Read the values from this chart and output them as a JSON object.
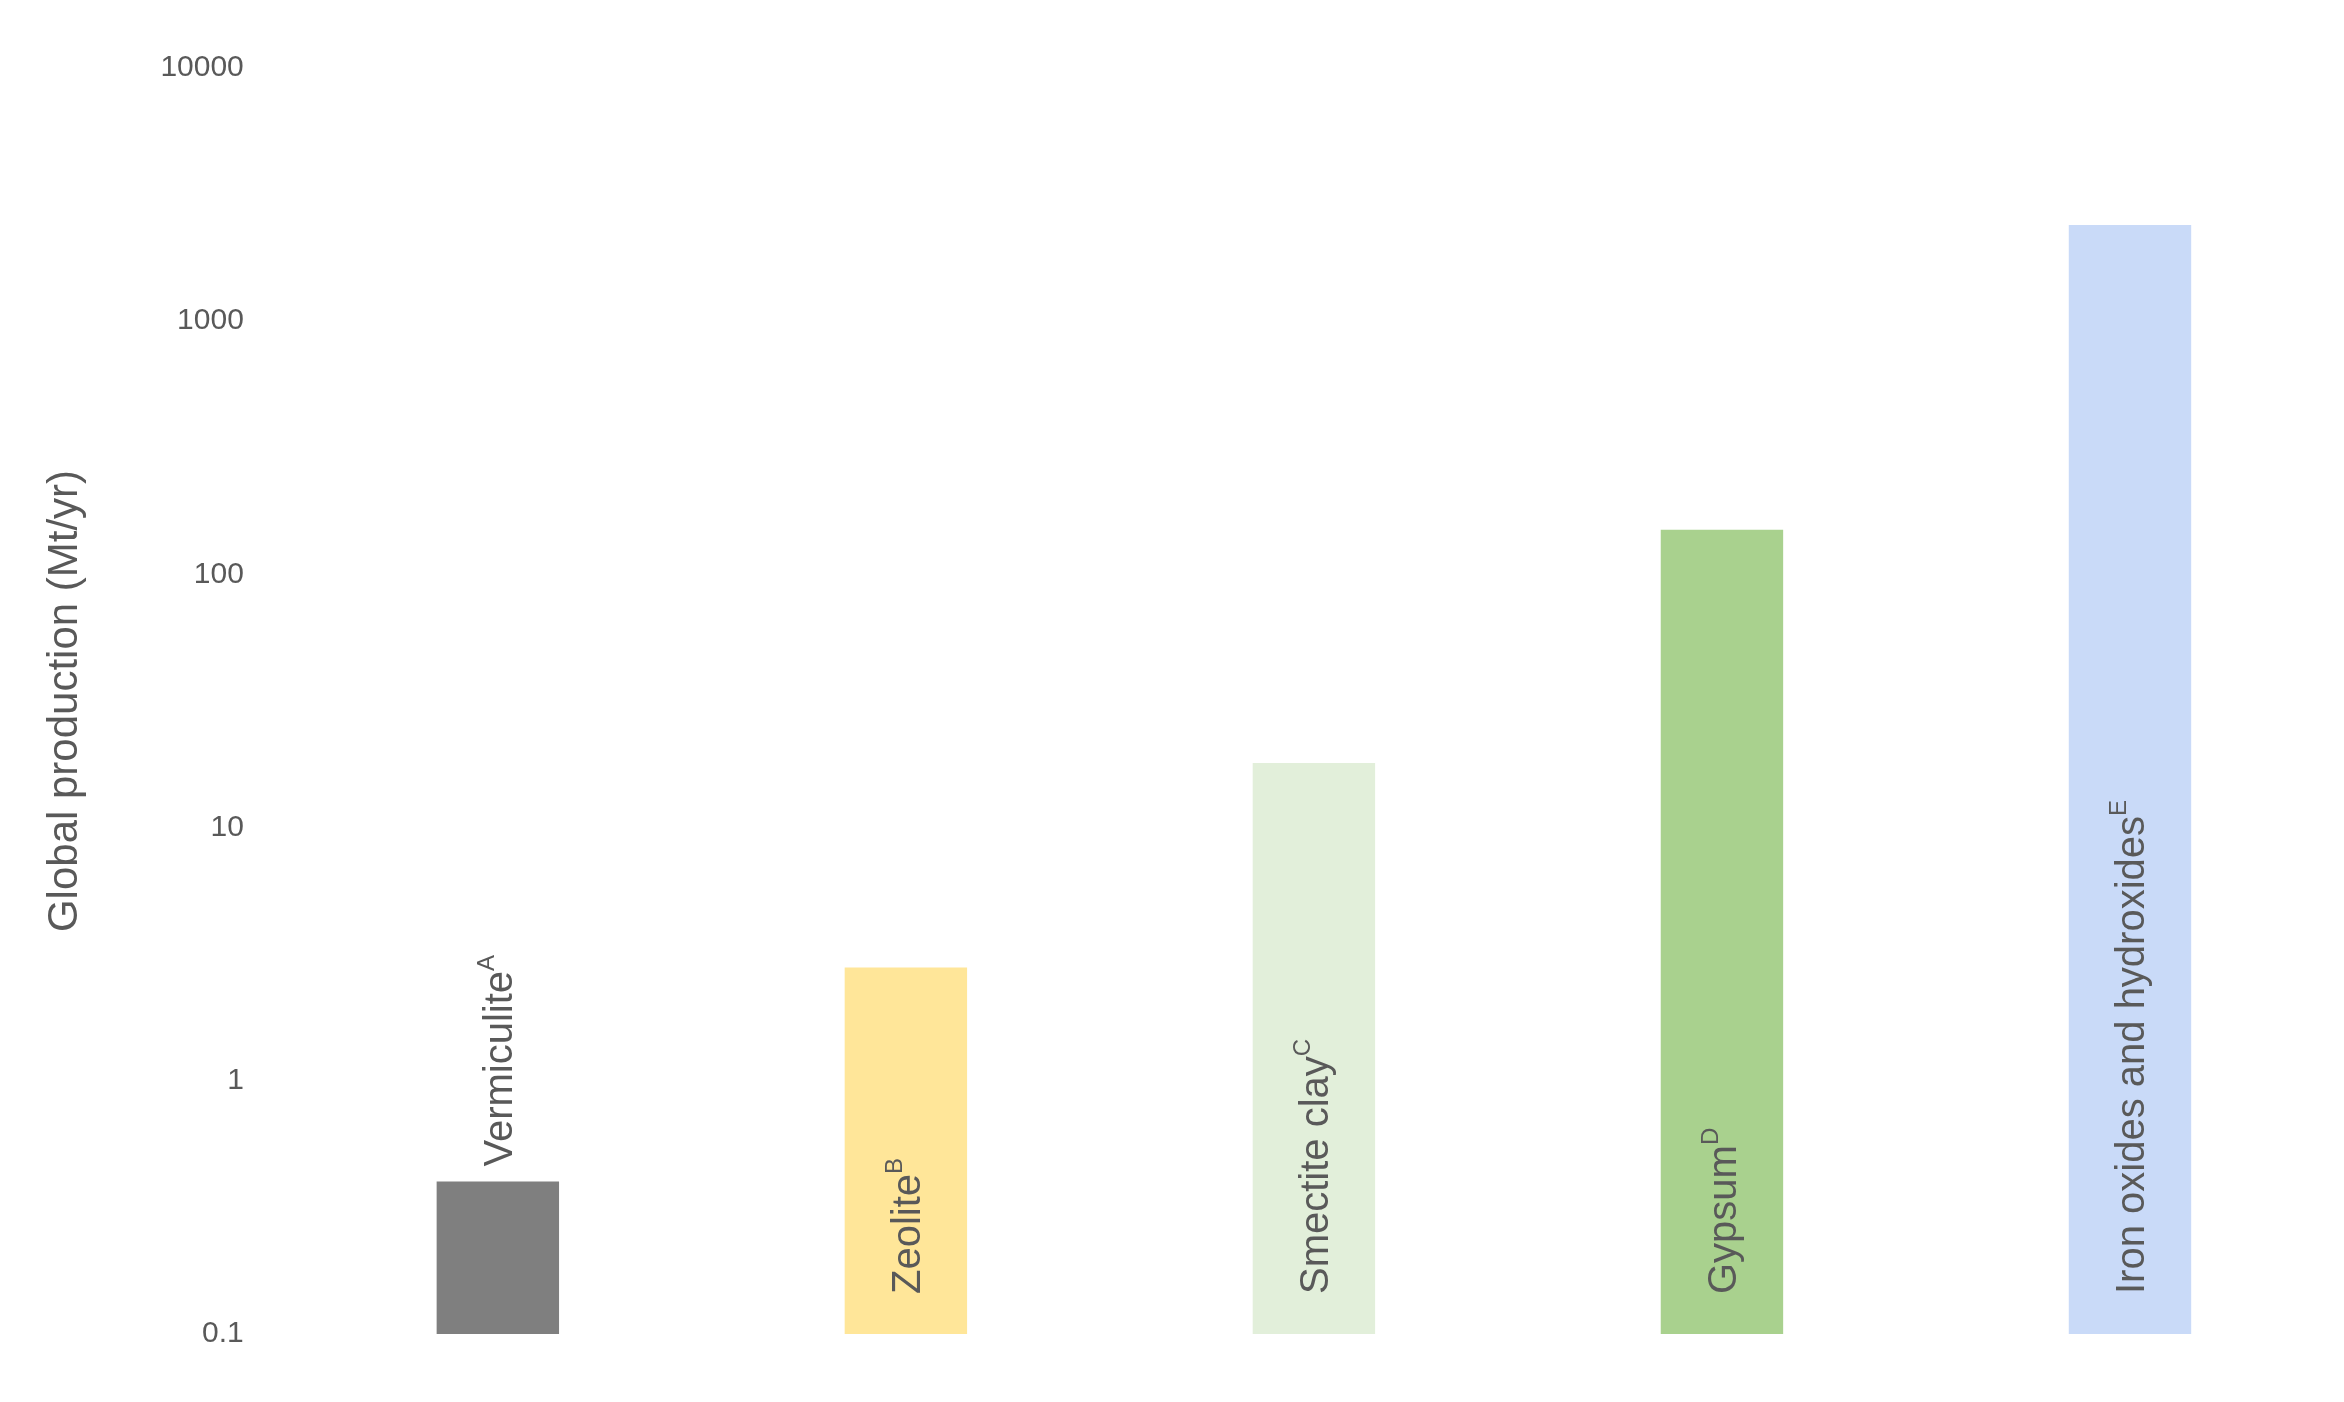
{
  "chart_data": {
    "type": "bar",
    "ylabel": "Global production (Mt/yr)",
    "categories": [
      "Vermiculite$^{A}$",
      "Zeolite$^{B}$",
      "Smectite clay$^{C}$",
      "Gypsum$^{D}$",
      "Iron oxides and hydroxides$^{E}$"
    ],
    "values": [
      0.4,
      2.8,
      18,
      150,
      2400
    ],
    "colors": [
      "#7f7f7f",
      "#ffe699",
      "#e2efda",
      "#a9d18e",
      "#c9daf8"
    ],
    "log": "y",
    "ylim": [
      0.1,
      10000
    ],
    "yticks": [
      0.1,
      1,
      10,
      100,
      1000,
      10000
    ],
    "grid": false,
    "legend": false
  }
}
